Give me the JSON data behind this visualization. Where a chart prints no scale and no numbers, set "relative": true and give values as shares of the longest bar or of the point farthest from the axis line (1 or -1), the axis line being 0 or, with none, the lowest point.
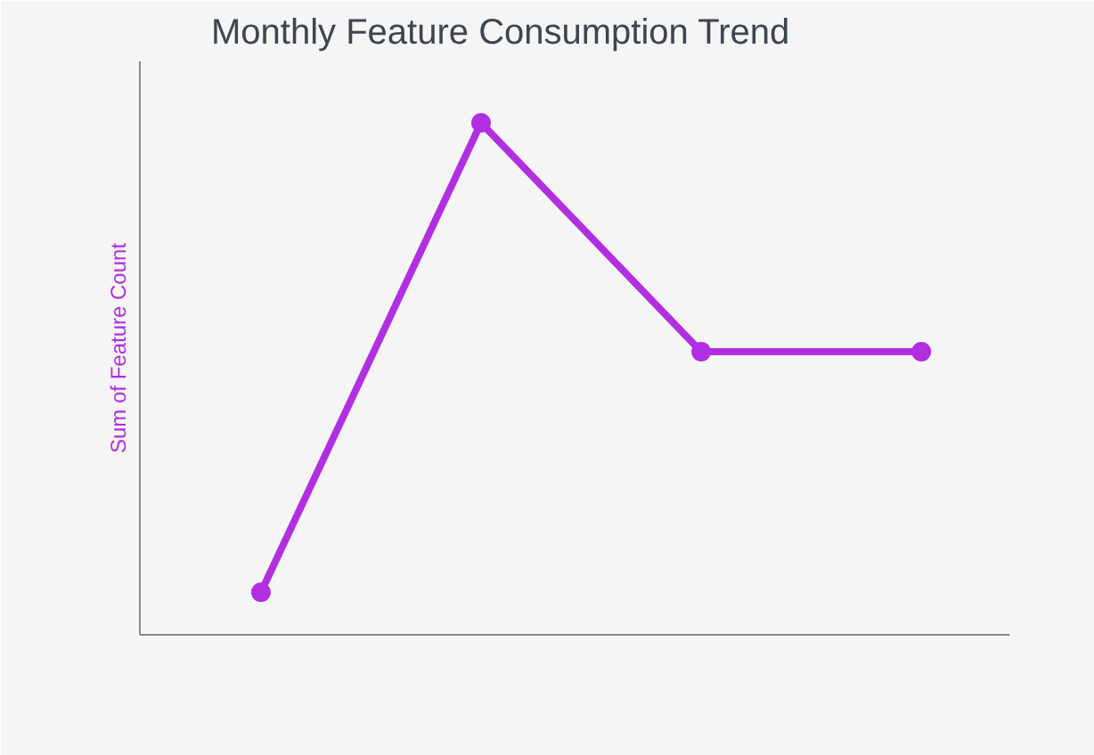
{
  "chart_data": {
    "type": "line",
    "title": "Monthly Feature Consumption Trend",
    "ylabel": "Sum of Feature Count",
    "relative": true,
    "categories": [
      null,
      null,
      null,
      null
    ],
    "series": [
      {
        "color": "#b12fe0",
        "values": [
          0.083,
          1,
          0.553,
          0.553
        ]
      }
    ],
    "marker": "circle",
    "grid": false
  }
}
